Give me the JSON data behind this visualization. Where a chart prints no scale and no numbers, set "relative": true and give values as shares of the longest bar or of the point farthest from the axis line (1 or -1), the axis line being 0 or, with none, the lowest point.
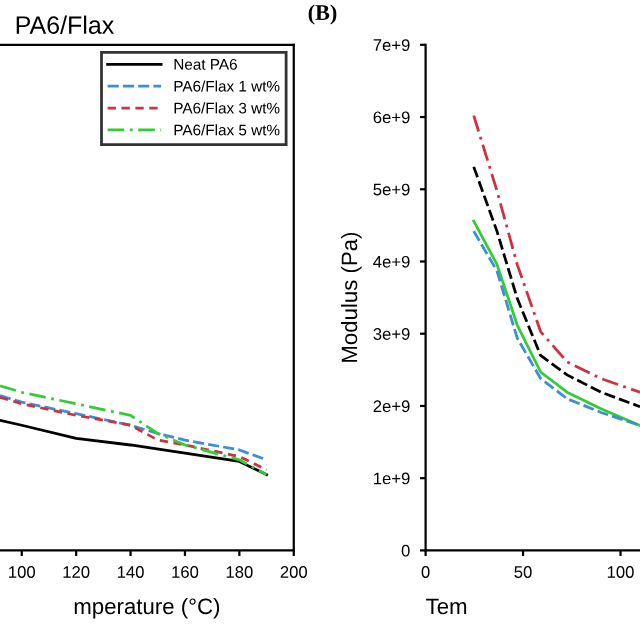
{
  "chart_data": [
    {
      "type": "line",
      "title": "PA6/Flax",
      "xlabel": "mperature (°C)",
      "relative": true,
      "tick_labels": "x",
      "xlim": [
        92,
        200
      ],
      "xticks": [
        100,
        120,
        140,
        160,
        180,
        200
      ],
      "legend": "top right",
      "series": [
        {
          "name": "Neat PA6",
          "color": "#000000",
          "line_style": "solid",
          "x": [
            92,
            100,
            120,
            140,
            160,
            180,
            190
          ],
          "values": [
            0.79,
            0.76,
            0.68,
            0.64,
            0.59,
            0.54,
            0.46
          ]
        },
        {
          "name": "PA6/Flax 1 wt%",
          "color": "#3a8fd8",
          "line_style": "dashed",
          "x": [
            92,
            100,
            120,
            140,
            150,
            160,
            180,
            190
          ],
          "values": [
            0.94,
            0.9,
            0.83,
            0.76,
            0.71,
            0.67,
            0.61,
            0.55
          ]
        },
        {
          "name": "PA6/Flax 3 wt%",
          "color": "#d03040",
          "line_style": "dotted",
          "x": [
            92,
            100,
            120,
            140,
            150,
            160,
            180,
            190
          ],
          "values": [
            0.93,
            0.89,
            0.82,
            0.76,
            0.67,
            0.64,
            0.57,
            0.49
          ]
        },
        {
          "name": "PA6/Flax 5 wt%",
          "color": "#33cc33",
          "line_style": "dashdot",
          "x": [
            92,
            100,
            120,
            140,
            150,
            160,
            180,
            190
          ],
          "values": [
            1,
            0.96,
            0.89,
            0.82,
            0.71,
            0.64,
            0.55,
            0.46
          ]
        }
      ]
    },
    {
      "type": "line",
      "xlabel": "Tem",
      "ylabel": "Modulus (Pa)",
      "annotations": [
        "(B)"
      ],
      "xlim": [
        0,
        110
      ],
      "xticks": [
        0,
        50,
        100
      ],
      "ylim": [
        0,
        7000000000.0
      ],
      "yticks": [
        0,
        {
          "value": 1000000000.0,
          "label": "1e+9"
        },
        {
          "value": 2000000000.0,
          "label": "2e+9"
        },
        {
          "value": 3000000000.0,
          "label": "3e+9"
        },
        {
          "value": 4000000000.0,
          "label": "4e+9"
        },
        {
          "value": 5000000000.0,
          "label": "5e+9"
        },
        {
          "value": 6000000000.0,
          "label": "6e+9"
        },
        {
          "value": 7000000000.0,
          "label": "7e+9"
        }
      ],
      "series": [
        {
          "color": "#d03040",
          "line_style": "dashdot",
          "x": [
            24.7,
            36.6,
            47,
            59,
            72.6,
            90,
            110
          ],
          "values": [
            6020000000.0,
            4980000000.0,
            3960000000.0,
            3030000000.0,
            2610000000.0,
            2380000000.0,
            2190000000.0
          ]
        },
        {
          "color": "#000000",
          "line_style": "dashed",
          "x": [
            24.7,
            36.6,
            47,
            59,
            72.6,
            90,
            110
          ],
          "values": [
            5310000000.0,
            4420000000.0,
            3490000000.0,
            2700000000.0,
            2430000000.0,
            2190000000.0,
            1990000000.0
          ]
        },
        {
          "color": "#33cc33",
          "line_style": "solid",
          "x": [
            24.7,
            36.6,
            47,
            59,
            72.6,
            90,
            110
          ],
          "values": [
            4560000000.0,
            3960000000.0,
            3120000000.0,
            2470000000.0,
            2190000000.0,
            1960000000.0,
            1730000000.0
          ]
        },
        {
          "color": "#3a8fd8",
          "line_style": "dashed",
          "x": [
            24.7,
            36.6,
            47,
            59,
            72.6,
            90,
            110
          ],
          "values": [
            4420000000.0,
            3870000000.0,
            2940000000.0,
            2380000000.0,
            2100000000.0,
            1910000000.0,
            1730000000.0
          ]
        }
      ]
    }
  ]
}
